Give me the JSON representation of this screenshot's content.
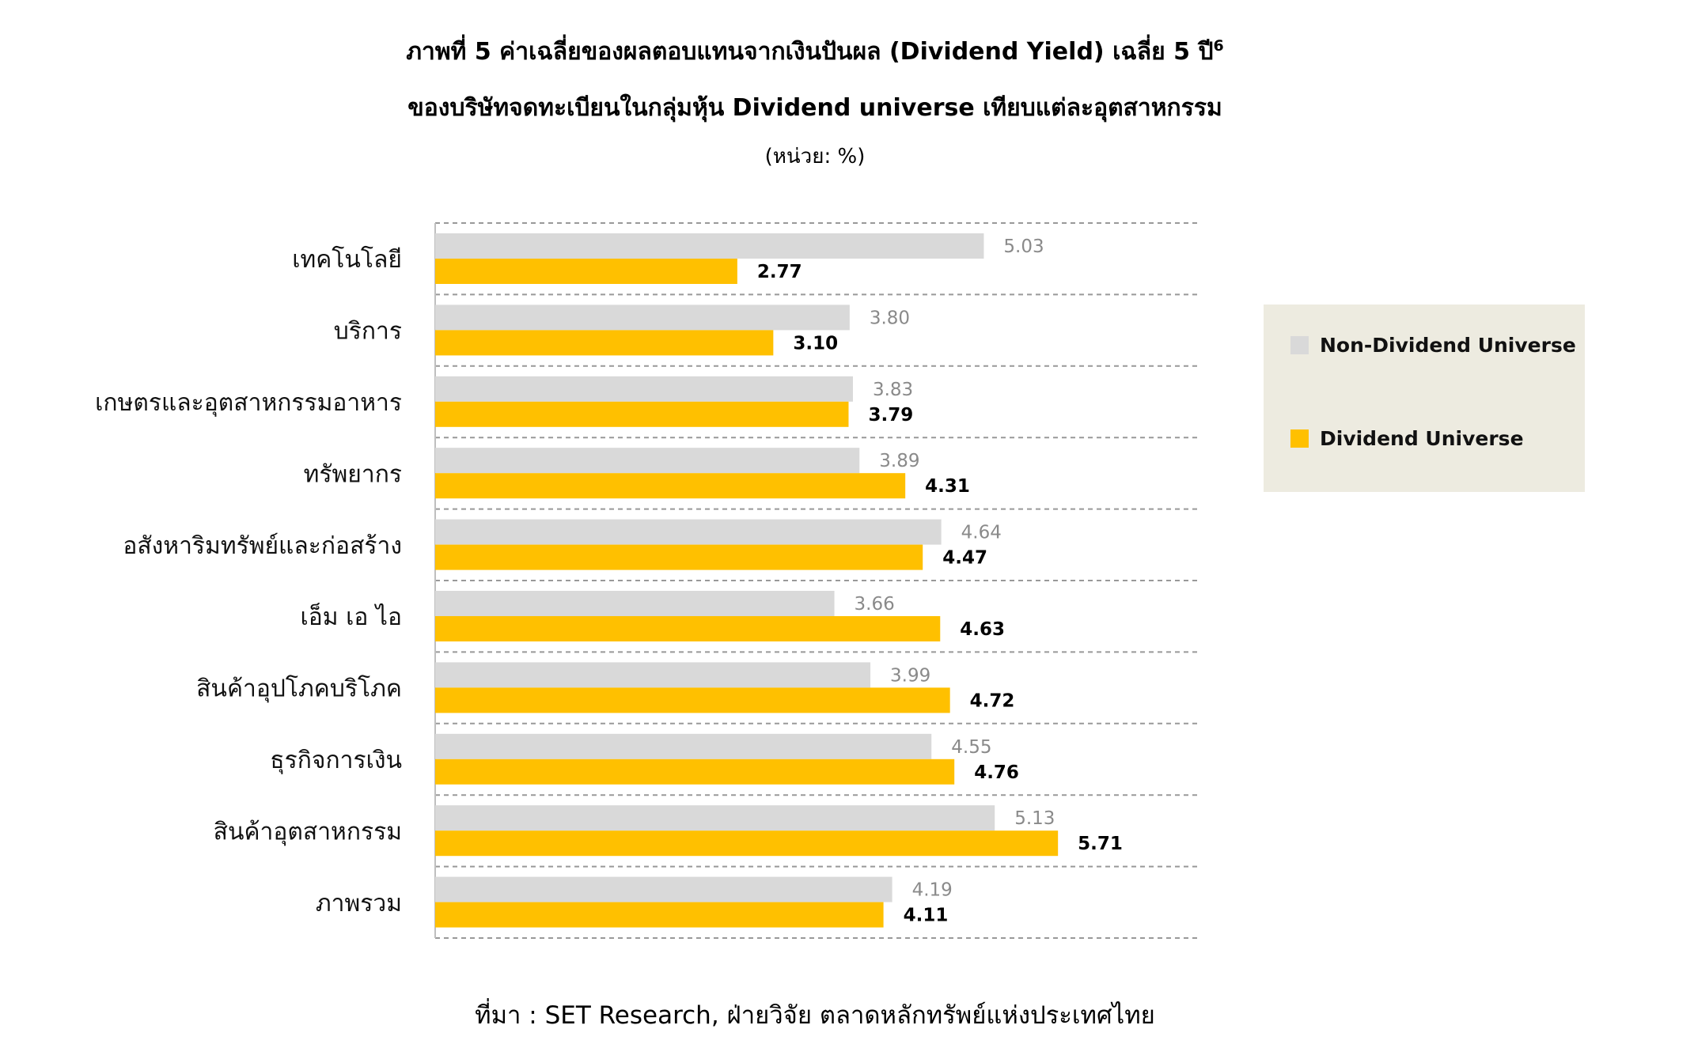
{
  "chart_data": {
    "type": "bar",
    "orientation": "horizontal",
    "title": "ภาพที่ 5 ค่าเฉลี่ยของผลตอบแทนจากเงินปันผล (Dividend Yield) เฉลี่ย 5 ปี",
    "title_superscript": "6",
    "subtitle": "ของบริษัทจดทะเบียนในกลุ่มหุ้น Dividend universe เทียบแต่ละอุตสาหกรรม",
    "unit_label": "(หน่วย: %)",
    "categories": [
      "เทคโนโลยี",
      "บริการ",
      "เกษตรและอุตสาหกรรมอาหาร",
      "ทรัพยากร",
      "อสังหาริมทรัพย์และก่อสร้าง",
      "เอ็ม เอ ไอ",
      "สินค้าอุปโภคบริโภค",
      "ธุรกิจการเงิน",
      "สินค้าอุตสาหกรรม",
      "ภาพรวม"
    ],
    "series": [
      {
        "name": "Non-Dividend Universe",
        "color": "#d9d9d9",
        "label_color": "#8a8a8a",
        "values": [
          5.03,
          3.8,
          3.83,
          3.89,
          4.64,
          3.66,
          3.99,
          4.55,
          5.13,
          4.19
        ],
        "labels": [
          "5.03",
          "3.80",
          "3.83",
          "3.89",
          "4.64",
          "3.66",
          "3.99",
          "4.55",
          "5.13",
          "4.19"
        ]
      },
      {
        "name": "Dividend Universe",
        "color": "#ffc000",
        "label_color": "#000000",
        "values": [
          2.77,
          3.1,
          3.79,
          4.31,
          4.47,
          4.63,
          4.72,
          4.76,
          5.71,
          4.11
        ],
        "labels": [
          "2.77",
          "3.10",
          "3.79",
          "4.31",
          "4.47",
          "4.63",
          "4.72",
          "4.76",
          "5.71",
          "4.11"
        ]
      }
    ],
    "xlim": [
      0,
      7
    ],
    "grid": true,
    "gridline_style": "dashed",
    "legend_position": "right"
  },
  "source": "ที่มา : SET Research, ฝ่ายวิจัย ตลาดหลักทรัพย์แห่งประเทศไทย"
}
